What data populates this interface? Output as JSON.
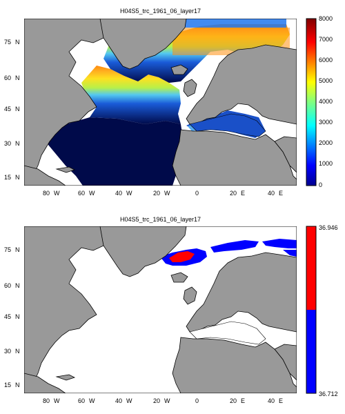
{
  "panel_top": {
    "title": "H04S5_trc_1961_06_layer17",
    "colorbar_ticks": [
      "8000",
      "7000",
      "6000",
      "5000",
      "4000",
      "3000",
      "2000",
      "1000",
      "0"
    ]
  },
  "panel_bottom": {
    "title": "H04S5_trc_1961_06_layer17",
    "colorbar_ticks": [
      "36.946",
      "36.712"
    ]
  },
  "axes": {
    "lon_labels": [
      "80",
      "W",
      "60",
      "W",
      "40",
      "W",
      "20",
      "W",
      "0",
      "20",
      "E",
      "40",
      "E"
    ],
    "lat_labels": [
      "75",
      "N",
      "60",
      "N",
      "45",
      "N",
      "30",
      "N",
      "15",
      "N"
    ]
  },
  "colors": {
    "land": "#999999",
    "ocean_nodata": "#ffffff",
    "deep_blue": "#000a4a",
    "red": "#ff0000",
    "blue": "#0000ff"
  },
  "chart_data": [
    {
      "type": "heatmap",
      "title": "H04S5_trc_1961_06_layer17",
      "xlim": [
        -90,
        50
      ],
      "ylim": [
        10,
        87
      ],
      "colorbar_range": [
        0,
        8000
      ],
      "colormap": "jet"
    },
    {
      "type": "heatmap",
      "title": "H04S5_trc_1961_06_layer17",
      "xlim": [
        -90,
        50
      ],
      "ylim": [
        10,
        87
      ],
      "colorbar_range": [
        36.712,
        36.946
      ],
      "colormap": "two-color red/blue"
    }
  ]
}
